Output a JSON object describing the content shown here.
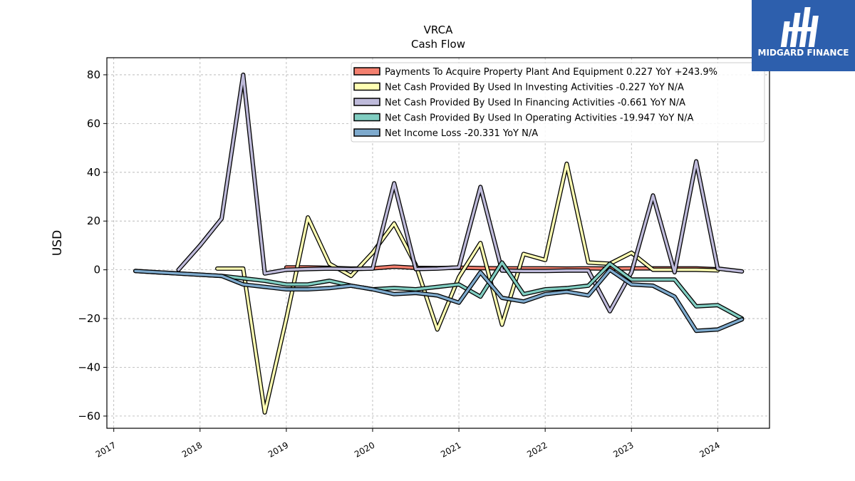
{
  "logo": {
    "text": "MIDGARD FINANCE",
    "bg_color": "#2d5fad"
  },
  "chart_data": {
    "type": "line",
    "title": "VRCA",
    "subtitle": "Cash Flow",
    "xlabel": "",
    "ylabel": "USD",
    "ylim": [
      -65,
      87
    ],
    "xlim": [
      2016.92,
      2024.6
    ],
    "yticks": [
      80,
      60,
      40,
      20,
      0,
      -20,
      -40,
      -60
    ],
    "ytick_labels": [
      "80",
      "60",
      "40",
      "20",
      "0",
      "−20",
      "−40",
      "−60"
    ],
    "xticks": [
      "2017",
      "2018",
      "2019",
      "2020",
      "2021",
      "2022",
      "2023",
      "2024"
    ],
    "grid": true,
    "legend_position": "top-right",
    "series": [
      {
        "name": "Payments To Acquire Property Plant And Equipment  0.227 YoY +243.9%",
        "color": "#f4806f",
        "x": [
          2019.0,
          2019.25,
          2019.5,
          2019.75,
          2020.0,
          2020.25,
          2020.5,
          2020.75,
          2021.0,
          2021.25,
          2021.5,
          2021.75,
          2022.0,
          2022.25,
          2022.5,
          2022.75,
          2023.0,
          2023.25,
          2023.5,
          2023.75,
          2024.0
        ],
        "y": [
          1.0,
          1.0,
          0.8,
          0.5,
          0.6,
          1.3,
          0.8,
          0.7,
          0.9,
          0.7,
          0.6,
          0.6,
          0.6,
          0.5,
          0.6,
          0.5,
          0.6,
          0.6,
          0.6,
          0.6,
          0.2
        ]
      },
      {
        "name": "Net Cash Provided By Used In Investing Activities  -0.227 YoY N/A",
        "color": "#ffffb3",
        "x": [
          2018.2,
          2018.5,
          2018.75,
          2019.0,
          2019.25,
          2019.5,
          2019.75,
          2020.0,
          2020.25,
          2020.5,
          2020.75,
          2021.0,
          2021.25,
          2021.5,
          2021.75,
          2022.0,
          2022.25,
          2022.5,
          2022.75,
          2023.0,
          2023.25,
          2023.5,
          2023.75,
          2024.0
        ],
        "y": [
          0.5,
          0.5,
          -58.5,
          -20.0,
          21.5,
          2.5,
          -2.5,
          7.0,
          19.0,
          2.0,
          -24.5,
          -3.0,
          11.0,
          -22.5,
          6.5,
          4.0,
          43.5,
          3.0,
          2.5,
          7.0,
          0.0,
          0.0,
          0.0,
          -0.227
        ]
      },
      {
        "name": "Net Cash Provided By Used In Financing Activities  -0.661 YoY N/A",
        "color": "#bebada",
        "x": [
          2017.75,
          2018.0,
          2018.25,
          2018.5,
          2018.75,
          2019.0,
          2019.25,
          2019.5,
          2019.75,
          2020.0,
          2020.25,
          2020.5,
          2020.75,
          2021.0,
          2021.25,
          2021.5,
          2021.75,
          2022.0,
          2022.25,
          2022.5,
          2022.75,
          2023.0,
          2023.25,
          2023.5,
          2023.75,
          2024.0,
          2024.28
        ],
        "y": [
          0.0,
          10.0,
          21.0,
          80.0,
          -1.5,
          0.0,
          0.3,
          0.5,
          0.3,
          0.5,
          35.5,
          0.3,
          0.5,
          1.0,
          34.0,
          -0.3,
          -0.5,
          -0.5,
          -0.3,
          -0.3,
          -17.0,
          -1.0,
          30.5,
          -1.0,
          44.5,
          0.5,
          -0.661
        ]
      },
      {
        "name": "Net Cash Provided By Used In Operating Activities  -19.947 YoY N/A",
        "color": "#80cdc1",
        "x": [
          2017.25,
          2017.5,
          2017.75,
          2018.0,
          2018.25,
          2018.5,
          2018.75,
          2019.0,
          2019.25,
          2019.5,
          2019.75,
          2020.0,
          2020.25,
          2020.5,
          2020.75,
          2021.0,
          2021.25,
          2021.5,
          2021.75,
          2022.0,
          2022.25,
          2022.5,
          2022.75,
          2023.0,
          2023.25,
          2023.5,
          2023.75,
          2024.0,
          2024.28
        ],
        "y": [
          -0.5,
          -1.0,
          -1.5,
          -2.0,
          -2.5,
          -3.5,
          -4.5,
          -6.0,
          -6.0,
          -4.5,
          -6.5,
          -8.0,
          -7.5,
          -8.0,
          -7.0,
          -6.0,
          -11.0,
          3.0,
          -10.0,
          -8.0,
          -7.5,
          -6.5,
          2.5,
          -4.0,
          -4.0,
          -4.0,
          -15.0,
          -14.5,
          -19.947
        ]
      },
      {
        "name": "Net Income Loss  -20.331 YoY N/A",
        "color": "#7eaacd",
        "x": [
          2017.25,
          2017.5,
          2017.75,
          2018.0,
          2018.25,
          2018.5,
          2018.75,
          2019.0,
          2019.25,
          2019.5,
          2019.75,
          2020.0,
          2020.25,
          2020.5,
          2020.75,
          2021.0,
          2021.25,
          2021.5,
          2021.75,
          2022.0,
          2022.25,
          2022.5,
          2022.75,
          2023.0,
          2023.25,
          2023.5,
          2023.75,
          2024.0,
          2024.28
        ],
        "y": [
          -0.5,
          -1.0,
          -1.5,
          -2.0,
          -2.5,
          -6.0,
          -7.0,
          -8.0,
          -8.0,
          -7.5,
          -6.5,
          -8.0,
          -10.0,
          -9.5,
          -10.5,
          -13.5,
          -1.0,
          -11.5,
          -13.0,
          -10.0,
          -9.0,
          -10.5,
          0.0,
          -6.0,
          -6.5,
          -11.0,
          -25.0,
          -24.5,
          -20.331
        ]
      }
    ]
  }
}
